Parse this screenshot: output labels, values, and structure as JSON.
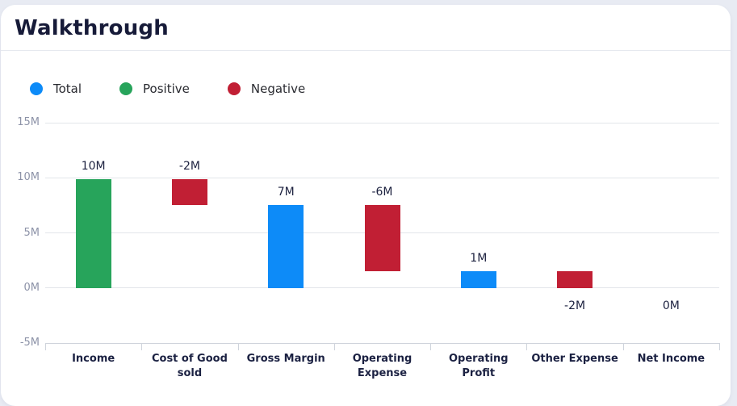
{
  "header": {
    "title": "Walkthrough"
  },
  "legend": {
    "items": [
      {
        "key": "total",
        "label": "Total",
        "color": "#0d8bf8"
      },
      {
        "key": "positive",
        "label": "Positive",
        "color": "#27a45b"
      },
      {
        "key": "negative",
        "label": "Negative",
        "color": "#c11f34"
      }
    ]
  },
  "chart_data": {
    "type": "bar",
    "subtype": "waterfall",
    "title": "Walkthrough",
    "categories": [
      "Income",
      "Cost of Good sold",
      "Gross Margin",
      "Operating Expense",
      "Operating Profit",
      "Other Expense",
      "Net Income"
    ],
    "values": [
      10,
      -2,
      7,
      -6,
      1,
      -2,
      0
    ],
    "value_labels": [
      "10M",
      "-2M",
      "7M",
      "-6M",
      "1M",
      "-2M",
      "0M"
    ],
    "bar_types": [
      "positive",
      "negative",
      "total",
      "negative",
      "total",
      "negative",
      "total"
    ],
    "segments": [
      [
        0,
        9.9
      ],
      [
        7.55,
        9.9
      ],
      [
        0,
        7.55
      ],
      [
        1.55,
        7.55
      ],
      [
        0,
        1.55
      ],
      [
        0,
        1.55
      ],
      [
        0,
        0
      ]
    ],
    "label_positions": [
      "above",
      "above",
      "above",
      "above",
      "above",
      "below",
      "below"
    ],
    "y_ticks": [
      "15M",
      "10M",
      "5M",
      "0M",
      "-5M"
    ],
    "y_tick_values": [
      15,
      10,
      5,
      0,
      -5
    ],
    "ylim": [
      -5,
      15
    ],
    "xlabel": "",
    "ylabel": "",
    "grid": true,
    "legend_position": "top-left",
    "series_colors": {
      "total": "#0d8bf8",
      "positive": "#27a45b",
      "negative": "#c11f34"
    }
  }
}
